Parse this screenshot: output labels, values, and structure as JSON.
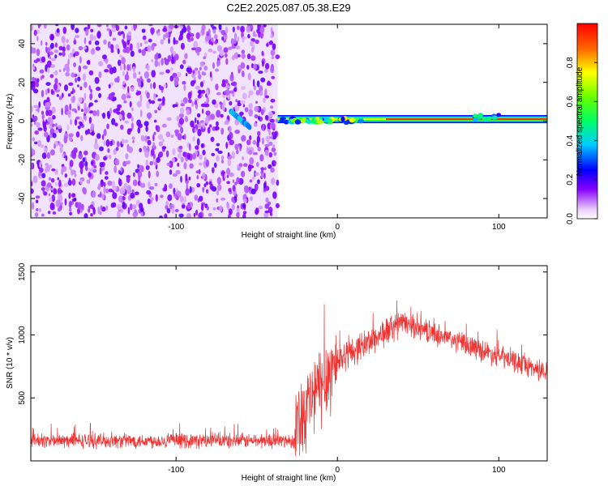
{
  "title": "C2E2.2025.087.05.38.E29",
  "chart_data": [
    {
      "type": "heatmap",
      "name": "spectrogram",
      "xlabel": "Height of straight line (km)",
      "ylabel": "Frequency (Hz)",
      "xlim": [
        -190,
        130
      ],
      "ylim": [
        -50,
        50
      ],
      "xticks": [
        -100,
        0,
        100
      ],
      "yticks": [
        -40,
        -20,
        0,
        20,
        40
      ],
      "noise_region_x": [
        -190,
        -37
      ],
      "signal_band_hz": [
        -2,
        3
      ],
      "colorbar": {
        "label": "Normalized spectral amplitude",
        "range": [
          0,
          1
        ],
        "ticks": [
          0.0,
          0.2,
          0.4,
          0.6,
          0.8
        ]
      }
    },
    {
      "type": "line",
      "name": "snr",
      "xlabel": "Height of straight line (km)",
      "ylabel": "SNR (10 * v/v)",
      "xlim": [
        -190,
        130
      ],
      "ylim": [
        0,
        1550
      ],
      "xticks": [
        -100,
        0,
        100
      ],
      "yticks": [
        500,
        1000,
        1500
      ],
      "color": "#ee3333",
      "segments": [
        {
          "x": [
            -190,
            -26
          ],
          "mean": [
            160,
            160
          ],
          "spread": 60
        },
        {
          "x": [
            -26,
            0
          ],
          "mean": [
            300,
            800
          ],
          "spread": 350
        },
        {
          "x": [
            0,
            40
          ],
          "mean": [
            800,
            1100
          ],
          "spread": 120
        },
        {
          "x": [
            40,
            130
          ],
          "mean": [
            1100,
            700
          ],
          "spread": 90
        }
      ]
    }
  ]
}
